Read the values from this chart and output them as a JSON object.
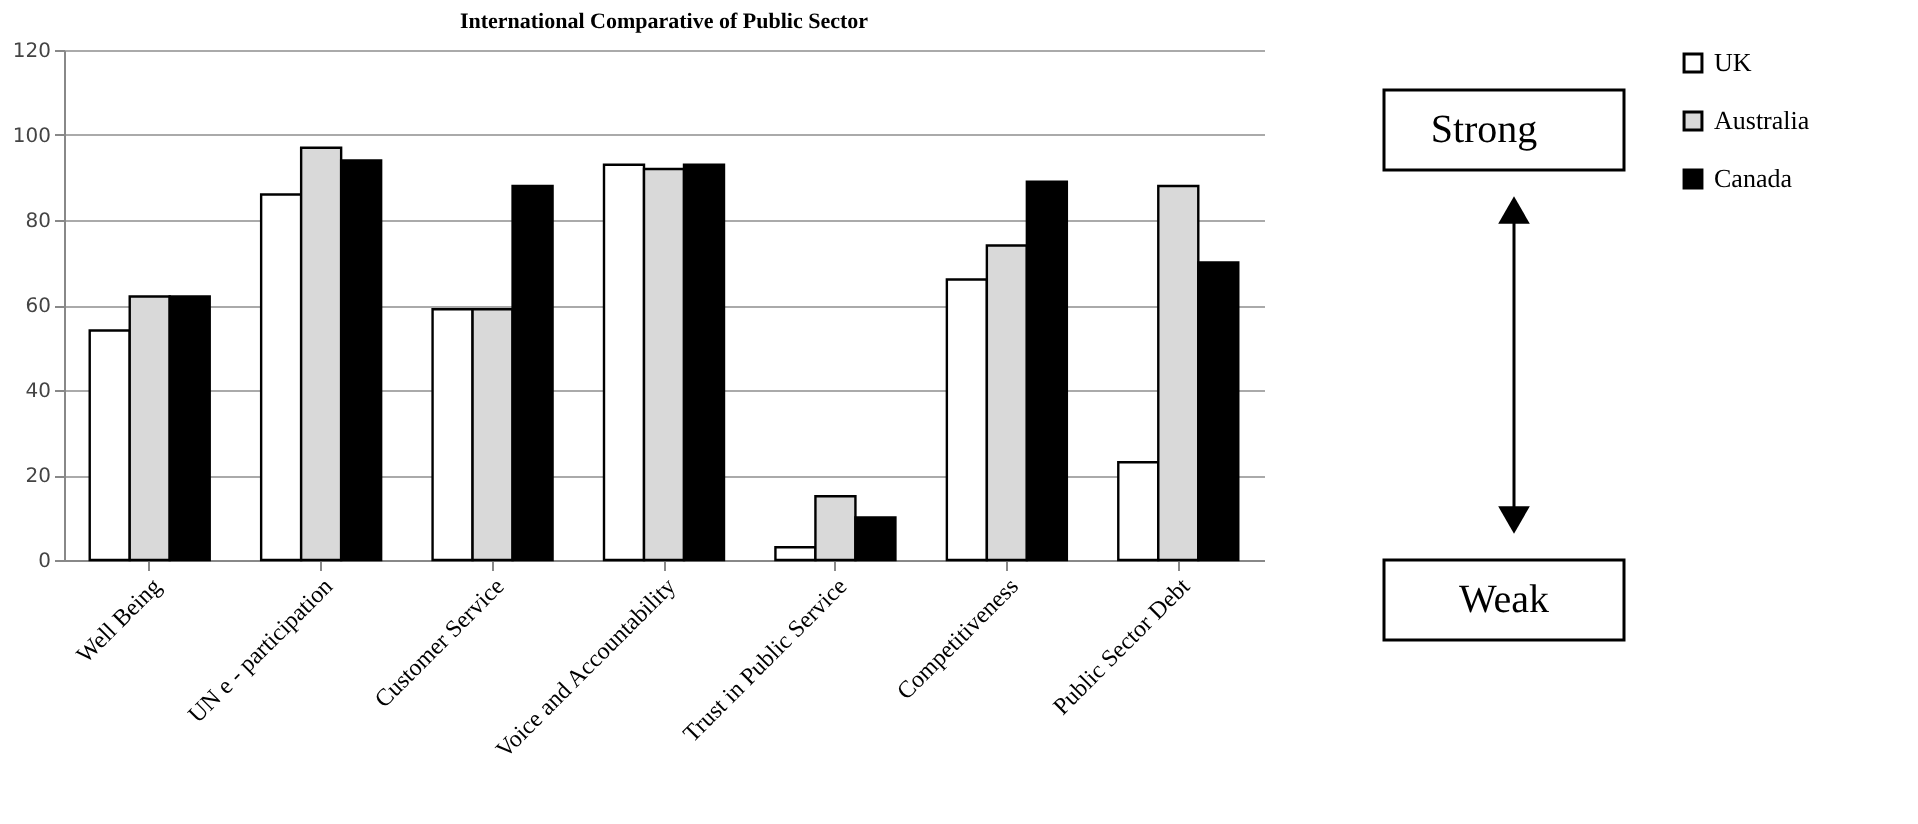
{
  "chart_data": {
    "type": "bar",
    "title": "International Comparative of Public Sector",
    "categories": [
      "Well Being",
      "UN  e - participation",
      "Customer Service",
      "Voice and Accountability",
      "Trust in Public Service",
      "Competitiveness",
      "Public Sector Debt"
    ],
    "series": [
      {
        "name": "UK",
        "color": "#ffffff",
        "values": [
          54,
          86,
          59,
          93,
          3,
          66,
          23
        ]
      },
      {
        "name": "Australia",
        "color": "#d9d9d9",
        "values": [
          62,
          97,
          59,
          92,
          15,
          74,
          88
        ]
      },
      {
        "name": "Canada",
        "color": "#000000",
        "values": [
          62,
          94,
          88,
          93,
          10,
          89,
          70
        ]
      }
    ],
    "ylim": [
      0,
      120
    ],
    "yticks": [
      0,
      20,
      40,
      60,
      80,
      100,
      120
    ],
    "grid": "y",
    "legend": "right",
    "annotations": [
      "Strong",
      "Weak"
    ]
  }
}
